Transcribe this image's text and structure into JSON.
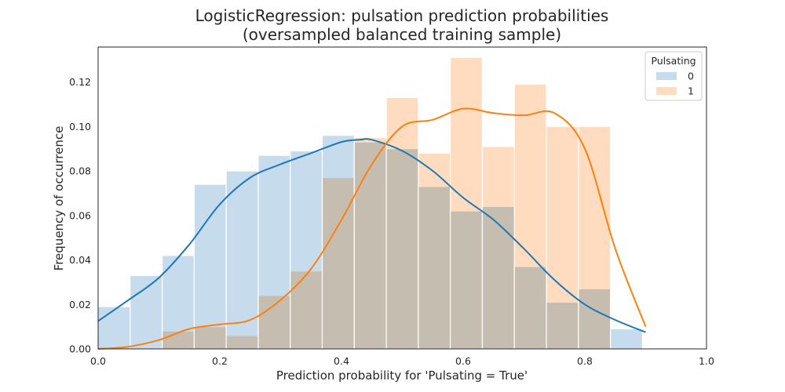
{
  "chart_data": {
    "type": "bar",
    "title": "LogisticRegression: pulsation prediction probabilities",
    "subtitle": "(oversampled balanced training sample)",
    "xlabel": "Prediction probability for 'Pulsating = True'",
    "ylabel": "Frequency of occurrence",
    "xlim": [
      0.0,
      1.0
    ],
    "ylim": [
      0.0,
      0.1357
    ],
    "xticks": [
      "0.0",
      "0.2",
      "0.4",
      "0.6",
      "0.8",
      "1.0"
    ],
    "yticks": [
      "0.00",
      "0.02",
      "0.04",
      "0.06",
      "0.08",
      "0.10",
      "0.12"
    ],
    "grid": false,
    "legend": {
      "title": "Pulsating",
      "placement": "top-right"
    },
    "bin_width": 0.0526,
    "series": [
      {
        "name": "0",
        "color": "#c6dbec",
        "line_color": "#1f77b4",
        "bin_starts": [
          0.0,
          0.0526,
          0.1053,
          0.1579,
          0.2105,
          0.2632,
          0.3158,
          0.3684,
          0.4211,
          0.4737,
          0.5263,
          0.5789,
          0.6316,
          0.6842,
          0.7368,
          0.7895,
          0.8421
        ],
        "values": [
          0.019,
          0.033,
          0.042,
          0.074,
          0.08,
          0.087,
          0.089,
          0.096,
          0.093,
          0.09,
          0.073,
          0.062,
          0.064,
          0.037,
          0.021,
          0.027,
          0.009
        ],
        "kde": [
          [
            0.0,
            0.0125
          ],
          [
            0.05,
            0.022
          ],
          [
            0.1,
            0.032
          ],
          [
            0.15,
            0.047
          ],
          [
            0.2,
            0.065
          ],
          [
            0.25,
            0.077
          ],
          [
            0.3,
            0.083
          ],
          [
            0.35,
            0.088
          ],
          [
            0.4,
            0.093
          ],
          [
            0.43,
            0.094
          ],
          [
            0.45,
            0.094
          ],
          [
            0.5,
            0.089
          ],
          [
            0.55,
            0.08
          ],
          [
            0.6,
            0.068
          ],
          [
            0.65,
            0.058
          ],
          [
            0.7,
            0.045
          ],
          [
            0.75,
            0.031
          ],
          [
            0.8,
            0.02
          ],
          [
            0.85,
            0.013
          ],
          [
            0.9,
            0.0075
          ]
        ]
      },
      {
        "name": "1",
        "color": "#ffdcbf",
        "line_color": "#ff7f0e",
        "bin_starts": [
          0.0,
          0.0526,
          0.1053,
          0.1579,
          0.2105,
          0.2632,
          0.3158,
          0.3684,
          0.4211,
          0.4737,
          0.5263,
          0.5789,
          0.6316,
          0.6842,
          0.7368,
          0.7895,
          0.8421
        ],
        "values": [
          0.0,
          0.0,
          0.008,
          0.01,
          0.006,
          0.024,
          0.035,
          0.077,
          0.095,
          0.113,
          0.088,
          0.131,
          0.091,
          0.119,
          0.1,
          0.1,
          0.0
        ],
        "kde": [
          [
            0.0,
            0.0
          ],
          [
            0.05,
            0.001
          ],
          [
            0.1,
            0.004
          ],
          [
            0.15,
            0.009
          ],
          [
            0.2,
            0.011
          ],
          [
            0.25,
            0.013
          ],
          [
            0.3,
            0.022
          ],
          [
            0.35,
            0.036
          ],
          [
            0.4,
            0.058
          ],
          [
            0.45,
            0.083
          ],
          [
            0.5,
            0.1
          ],
          [
            0.55,
            0.103
          ],
          [
            0.6,
            0.108
          ],
          [
            0.65,
            0.106
          ],
          [
            0.7,
            0.105
          ],
          [
            0.75,
            0.106
          ],
          [
            0.8,
            0.09
          ],
          [
            0.85,
            0.045
          ],
          [
            0.9,
            0.01
          ]
        ]
      }
    ]
  }
}
